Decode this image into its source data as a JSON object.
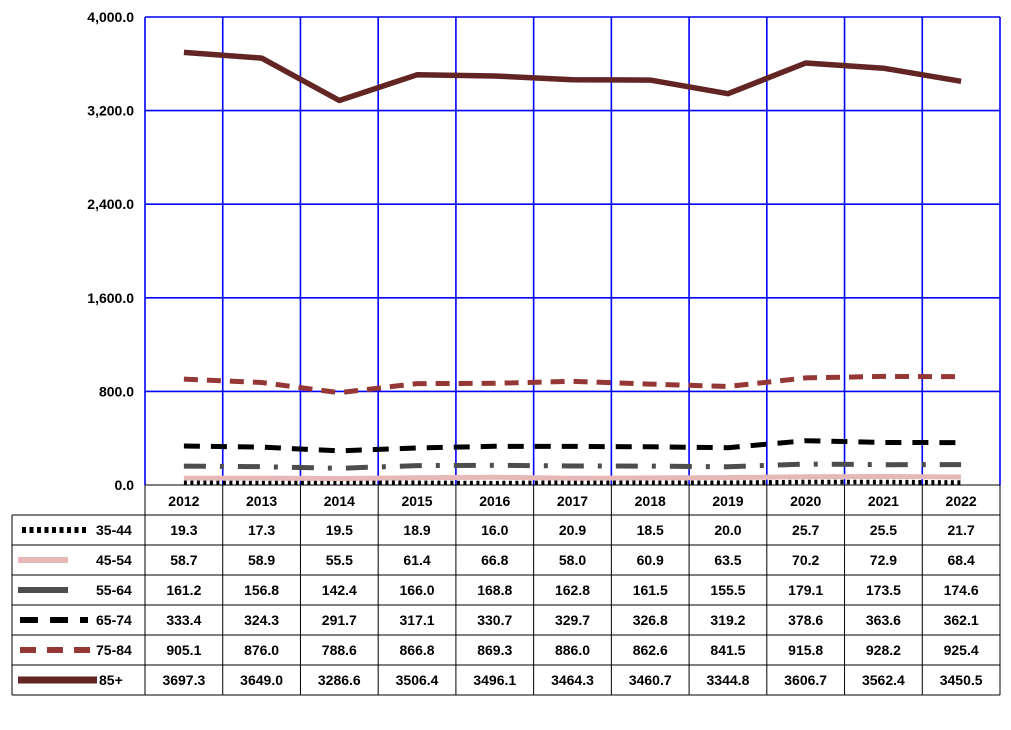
{
  "chart_data": {
    "type": "line",
    "title": "",
    "xlabel": "",
    "ylabel": "",
    "ylim": [
      0,
      4000
    ],
    "y_ticks": [
      "0.0",
      "800.0",
      "1,600.0",
      "2,400.0",
      "3,200.0",
      "4,000.0"
    ],
    "y_tick_values": [
      0,
      800,
      1600,
      2400,
      3200,
      4000
    ],
    "grid": true,
    "grid_color": "#0000ff",
    "legend_placement": "data-table",
    "categories": [
      "2012",
      "2013",
      "2014",
      "2015",
      "2016",
      "2017",
      "2018",
      "2019",
      "2020",
      "2021",
      "2022"
    ],
    "series": [
      {
        "name": "35-44",
        "color": "#000000",
        "style": "dotted",
        "values": [
          19.3,
          17.3,
          19.5,
          18.9,
          16.0,
          20.9,
          18.5,
          20.0,
          25.7,
          25.5,
          21.7
        ],
        "labels": [
          "19.3",
          "17.3",
          "19.5",
          "18.9",
          "16.0",
          "20.9",
          "18.5",
          "20.0",
          "25.7",
          "25.5",
          "21.7"
        ]
      },
      {
        "name": "45-54",
        "color": "#e6b8b7",
        "style": "solid",
        "values": [
          58.7,
          58.9,
          55.5,
          61.4,
          66.8,
          58.0,
          60.9,
          63.5,
          70.2,
          72.9,
          68.4
        ],
        "labels": [
          "58.7",
          "58.9",
          "55.5",
          "61.4",
          "66.8",
          "58.0",
          "60.9",
          "63.5",
          "70.2",
          "72.9",
          "68.4"
        ]
      },
      {
        "name": "55-64",
        "color": "#4d4d4d",
        "style": "dash-dot",
        "values": [
          161.2,
          156.8,
          142.4,
          166.0,
          168.8,
          162.8,
          161.5,
          155.5,
          179.1,
          173.5,
          174.6
        ],
        "labels": [
          "161.2",
          "156.8",
          "142.4",
          "166.0",
          "168.8",
          "162.8",
          "161.5",
          "155.5",
          "179.1",
          "173.5",
          "174.6"
        ]
      },
      {
        "name": "65-74",
        "color": "#000000",
        "style": "dashed",
        "values": [
          333.4,
          324.3,
          291.7,
          317.1,
          330.7,
          329.7,
          326.8,
          319.2,
          378.6,
          363.6,
          362.1
        ],
        "labels": [
          "333.4",
          "324.3",
          "291.7",
          "317.1",
          "330.7",
          "329.7",
          "326.8",
          "319.2",
          "378.6",
          "363.6",
          "362.1"
        ]
      },
      {
        "name": "75-84",
        "color": "#953735",
        "style": "dashed",
        "values": [
          905.1,
          876.0,
          788.6,
          866.8,
          869.3,
          886.0,
          862.6,
          841.5,
          915.8,
          928.2,
          925.4
        ],
        "labels": [
          "905.1",
          "876.0",
          "788.6",
          "866.8",
          "869.3",
          "886.0",
          "862.6",
          "841.5",
          "915.8",
          "928.2",
          "925.4"
        ]
      },
      {
        "name": "85+",
        "color": "#632523",
        "style": "solid",
        "values": [
          3697.3,
          3649.0,
          3286.6,
          3506.4,
          3496.1,
          3464.3,
          3460.7,
          3344.8,
          3606.7,
          3562.4,
          3450.5
        ],
        "labels": [
          "3697.3",
          "3649.0",
          "3286.6",
          "3506.4",
          "3496.1",
          "3464.3",
          "3460.7",
          "3344.8",
          "3606.7",
          "3562.4",
          "3450.5"
        ]
      }
    ]
  }
}
